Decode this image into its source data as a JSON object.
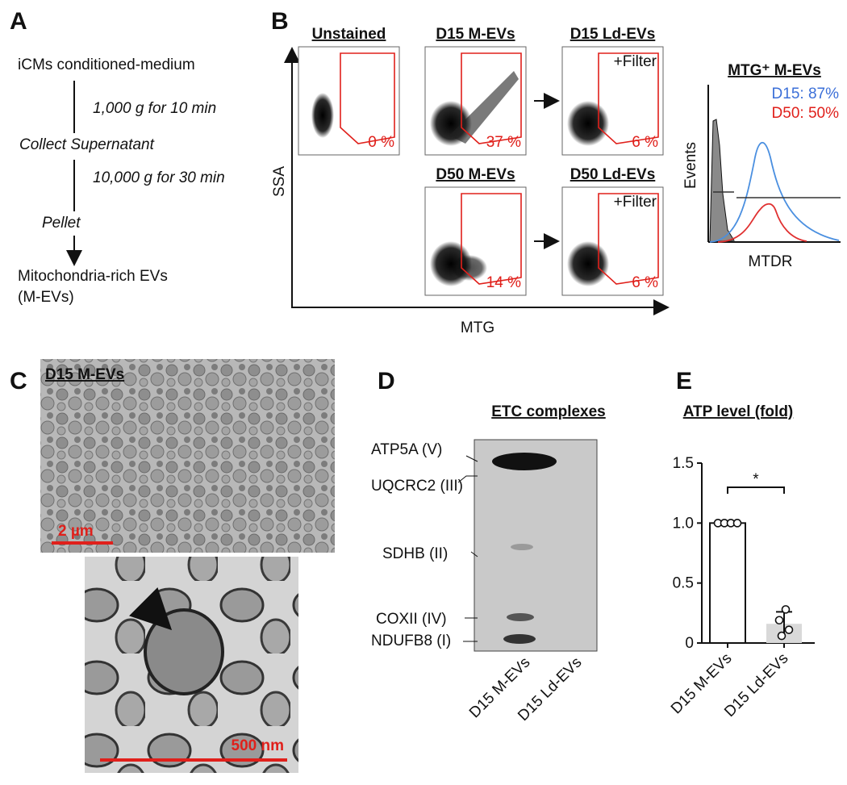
{
  "panel_a": {
    "label": "A",
    "start": "iCMs conditioned-medium",
    "spin_1": "1,000 g for 10 min",
    "step_1": "Collect Supernatant",
    "spin_2": "10,000 g for 30 min",
    "step_2": "Pellet",
    "result_line_1": "Mitochondria-rich EVs",
    "result_line_2": "(M-EVs)"
  },
  "panel_b": {
    "label": "B",
    "x_label": "MTG",
    "y_label": "SSA",
    "plots": [
      {
        "title": "Unstained",
        "percent": "0 %"
      },
      {
        "title": "D15 M-EVs",
        "percent": "37 %"
      },
      {
        "title": "D15 Ld-EVs",
        "percent": "6 %",
        "note": "+Filter"
      },
      {
        "title": "D50 M-EVs",
        "percent": "14 %"
      },
      {
        "title": "D50 Ld-EVs",
        "percent": "6 %",
        "note": "+Filter"
      }
    ],
    "histogram": {
      "title": "MTG⁺ M-EVs",
      "legend": [
        "D15: 87%",
        "D50: 50%"
      ],
      "x_label": "MTDR",
      "y_label": "Events"
    }
  },
  "panel_c": {
    "label": "C",
    "image_title": "D15 M-EVs",
    "scale_top": "2 µm",
    "scale_bottom": "500 nm"
  },
  "panel_d": {
    "label": "D",
    "title": "ETC complexes",
    "bands": [
      "ATP5A (V)",
      "UQCRC2 (III)",
      "SDHB (II)",
      "COXII (IV)",
      "NDUFB8 (I)"
    ],
    "lanes": [
      "D15 M-EVs",
      "D15 Ld-EVs"
    ]
  },
  "chart_data": {
    "type": "bar",
    "label": "E",
    "title": "ATP level (fold)",
    "categories": [
      "D15 M-EVs",
      "D15 Ld-EVs"
    ],
    "values": [
      1.0,
      0.16
    ],
    "errors": [
      0,
      0.1
    ],
    "colors": [
      "#ffffff",
      "#d9d9d9"
    ],
    "points": [
      [
        1,
        1,
        1,
        1
      ],
      [
        0.28,
        0.19,
        0.11,
        0.06
      ]
    ],
    "ylim": [
      0,
      1.5
    ],
    "yticks": [
      0,
      0.5,
      {
        "value": 1,
        "label": "1.0"
      },
      1.5
    ],
    "annotation": "*"
  }
}
